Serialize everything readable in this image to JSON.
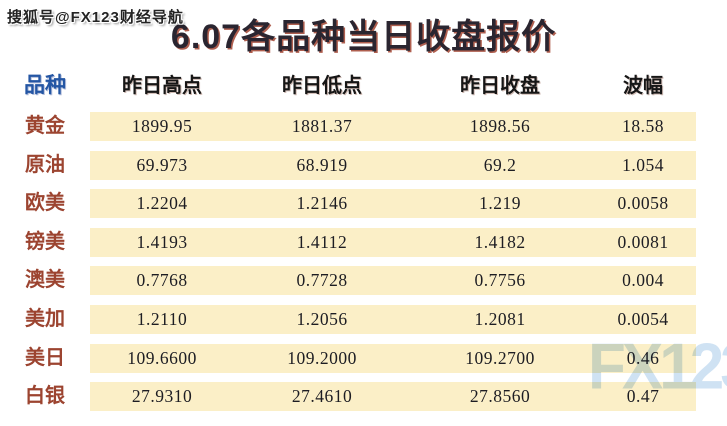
{
  "watermarks": {
    "top_left": "搜狐号@FX123财经导航",
    "bottom_right": "FX123"
  },
  "chart_data": {
    "type": "table",
    "title": "6.07各品种当日收盘报价",
    "columns": [
      "品种",
      "昨日高点",
      "昨日低点",
      "昨日收盘",
      "波幅"
    ],
    "rows": [
      [
        "黄金",
        "1899.95",
        "1881.37",
        "1898.56",
        "18.58"
      ],
      [
        "原油",
        "69.973",
        "68.919",
        "69.2",
        "1.054"
      ],
      [
        "欧美",
        "1.2204",
        "1.2146",
        "1.219",
        "0.0058"
      ],
      [
        "镑美",
        "1.4193",
        "1.4112",
        "1.4182",
        "0.0081"
      ],
      [
        "澳美",
        "0.7768",
        "0.7728",
        "0.7756",
        "0.004"
      ],
      [
        "美加",
        "1.2110",
        "1.2056",
        "1.2081",
        "0.0054"
      ],
      [
        "美日",
        "109.6600",
        "109.2000",
        "109.2700",
        "0.46"
      ],
      [
        "白银",
        "27.9310",
        "27.4610",
        "27.8560",
        "0.47"
      ]
    ]
  },
  "colors": {
    "row_background": "#fbefc7",
    "row_label": "#9c4430",
    "header_first_column": "#2456a4",
    "title_shadow": "#942a14",
    "corner_watermark": "#cfe2f3"
  }
}
